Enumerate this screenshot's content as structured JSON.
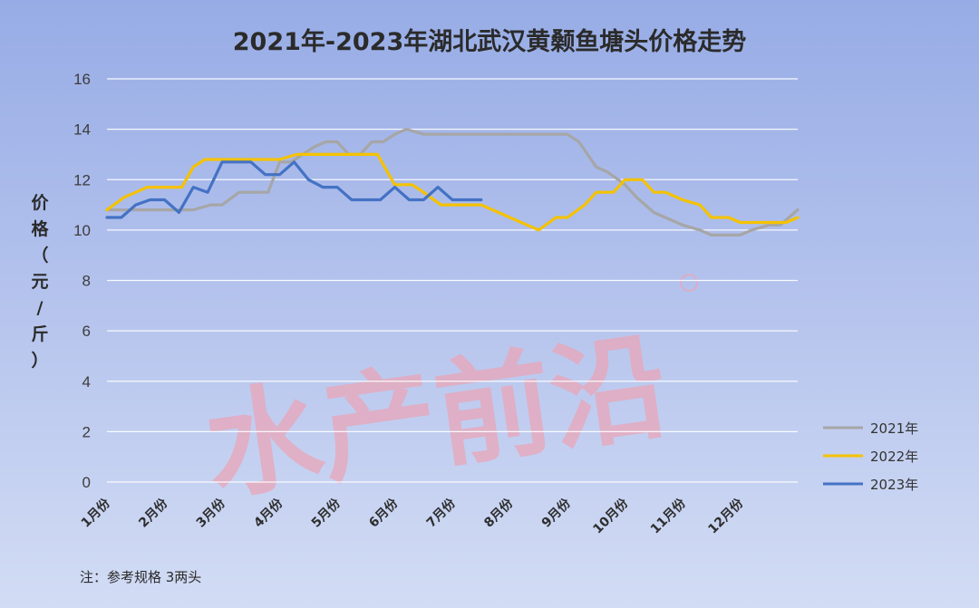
{
  "chart_data": {
    "type": "line",
    "title": "2021年-2023年湖北武汉黄颡鱼塘头价格走势",
    "ylabel": "价格（元/斤）",
    "xlabel": "",
    "ylim": [
      0,
      16
    ],
    "yticks": [
      0,
      2,
      4,
      6,
      8,
      10,
      12,
      14,
      16
    ],
    "categories": [
      "1月份",
      "2月份",
      "3月份",
      "4月份",
      "5月份",
      "6月份",
      "7月份",
      "8月份",
      "9月份",
      "10月份",
      "11月份",
      "12月份"
    ],
    "grid": true,
    "legend_position": "right",
    "note": "注：参考规格  3两头",
    "watermark": "水产前沿",
    "series": [
      {
        "name": "2021年",
        "color": "#a6a6a6",
        "x": [
          0,
          0.5,
          1,
          1.3,
          1.5,
          1.8,
          2,
          2.3,
          2.6,
          2.8,
          3,
          3.2,
          3.4,
          3.6,
          3.8,
          4,
          4.2,
          4.4,
          4.6,
          4.8,
          5,
          5.2,
          5.5,
          6,
          6.5,
          7,
          7.3,
          7.5,
          7.8,
          8,
          8.2,
          8.5,
          8.7,
          9,
          9.2,
          9.5,
          9.7,
          10,
          10.3,
          10.5,
          10.8,
          11,
          11.2,
          11.5,
          11.7,
          12
        ],
        "values": [
          10.8,
          10.8,
          10.8,
          10.8,
          10.8,
          11,
          11,
          11.5,
          11.5,
          11.5,
          12.7,
          12.7,
          13,
          13.3,
          13.5,
          13.5,
          13,
          13,
          13.5,
          13.5,
          13.8,
          14,
          13.8,
          13.8,
          13.8,
          13.8,
          13.8,
          13.8,
          13.8,
          13.8,
          13.5,
          12.5,
          12.3,
          11.8,
          11.3,
          10.7,
          10.5,
          10.2,
          10,
          9.8,
          9.8,
          9.8,
          10,
          10.2,
          10.2,
          10.8
        ]
      },
      {
        "name": "2022年",
        "color": "#f5c200",
        "x": [
          0,
          0.3,
          0.5,
          0.7,
          1,
          1.3,
          1.5,
          1.7,
          2,
          2.3,
          2.5,
          2.7,
          3,
          3.3,
          3.5,
          3.8,
          4,
          4.3,
          4.5,
          4.7,
          5,
          5.3,
          5.5,
          5.8,
          6,
          6.2,
          6.5,
          6.7,
          7,
          7.3,
          7.5,
          7.8,
          8,
          8.3,
          8.5,
          8.8,
          9,
          9.3,
          9.5,
          9.7,
          10,
          10.3,
          10.5,
          10.8,
          11,
          11.3,
          11.5,
          11.8,
          12
        ],
        "values": [
          10.8,
          11.3,
          11.5,
          11.7,
          11.7,
          11.7,
          12.5,
          12.8,
          12.8,
          12.8,
          12.8,
          12.8,
          12.8,
          13,
          13,
          13,
          13,
          13,
          13,
          13,
          11.8,
          11.8,
          11.5,
          11,
          11,
          11,
          11,
          10.8,
          10.5,
          10.2,
          10,
          10.5,
          10.5,
          11,
          11.5,
          11.5,
          12,
          12,
          11.5,
          11.5,
          11.2,
          11,
          10.5,
          10.5,
          10.3,
          10.3,
          10.3,
          10.3,
          10.5
        ]
      },
      {
        "name": "2023年",
        "color": "#4472c4",
        "x": [
          0,
          0.25,
          0.5,
          0.75,
          1,
          1.25,
          1.5,
          1.75,
          2,
          2.3,
          2.5,
          2.75,
          3,
          3.25,
          3.5,
          3.75,
          4,
          4.25,
          4.5,
          4.75,
          5,
          5.25,
          5.5,
          5.75,
          6,
          6.25,
          6.5
        ],
        "values": [
          10.5,
          10.5,
          11,
          11.2,
          11.2,
          10.7,
          11.7,
          11.5,
          12.7,
          12.7,
          12.7,
          12.2,
          12.2,
          12.7,
          12,
          11.7,
          11.7,
          11.2,
          11.2,
          11.2,
          11.7,
          11.2,
          11.2,
          11.7,
          11.2,
          11.2,
          11.2
        ]
      }
    ]
  }
}
